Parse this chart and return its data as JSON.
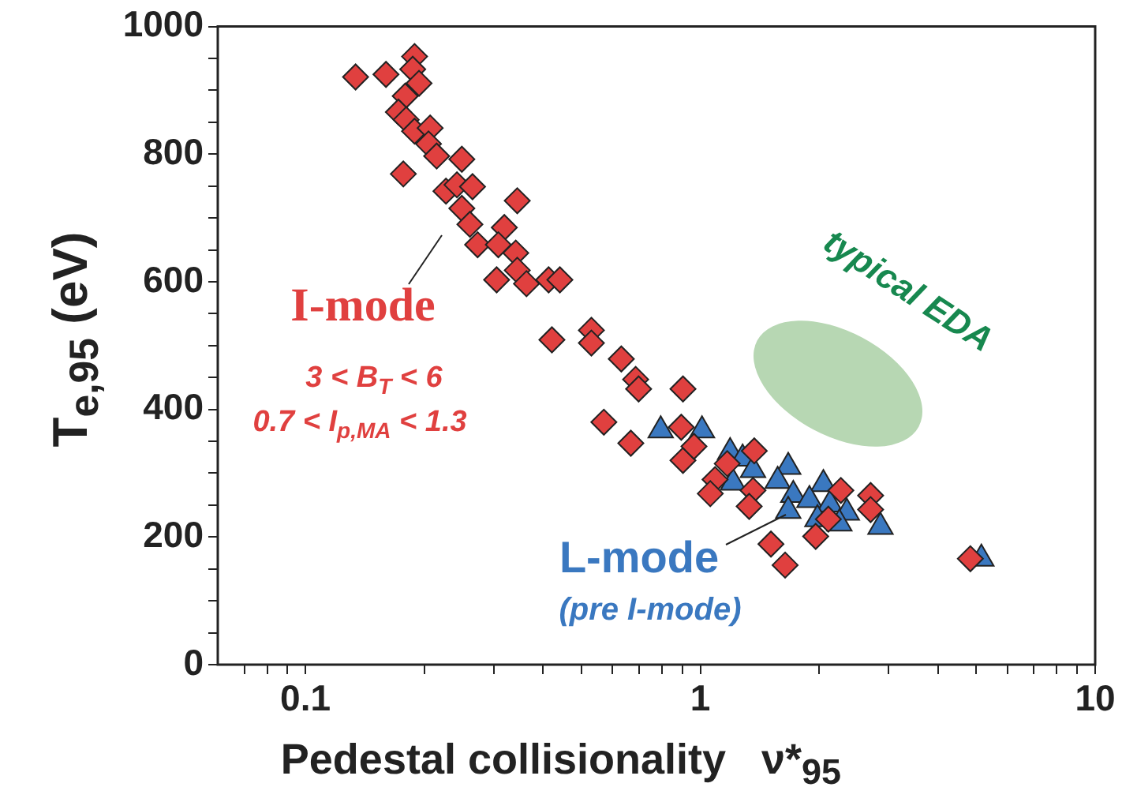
{
  "chart_data": {
    "type": "scatter",
    "xlabel": "Pedestal collisionality   ν*$_{95}$",
    "ylabel": "T$_{e,95}$ (eV)",
    "log": "x",
    "xlim": [
      0.06,
      10
    ],
    "xticks": [
      {
        "value": 0.07,
        "label": null
      },
      {
        "value": 0.08,
        "label": null
      },
      {
        "value": 0.09,
        "label": null
      },
      0.1,
      {
        "value": 0.2,
        "label": null
      },
      {
        "value": 0.3,
        "label": null
      },
      {
        "value": 0.4,
        "label": null
      },
      {
        "value": 0.5,
        "label": null
      },
      {
        "value": 0.6,
        "label": null
      },
      {
        "value": 0.7,
        "label": null
      },
      {
        "value": 0.8,
        "label": null
      },
      {
        "value": 0.9,
        "label": null
      },
      1,
      {
        "value": 2,
        "label": null
      },
      {
        "value": 3,
        "label": null
      },
      {
        "value": 4,
        "label": null
      },
      {
        "value": 5,
        "label": null
      },
      {
        "value": 6,
        "label": null
      },
      {
        "value": 7,
        "label": null
      },
      {
        "value": 8,
        "label": null
      },
      {
        "value": 9,
        "label": null
      },
      10
    ],
    "ylim": [
      0,
      1000
    ],
    "yticks": [
      0,
      {
        "value": 50,
        "label": null
      },
      {
        "value": 100,
        "label": null
      },
      {
        "value": 150,
        "label": null
      },
      200,
      {
        "value": 250,
        "label": null
      },
      {
        "value": 300,
        "label": null
      },
      {
        "value": 350,
        "label": null
      },
      400,
      {
        "value": 450,
        "label": null
      },
      {
        "value": 500,
        "label": null
      },
      {
        "value": 550,
        "label": null
      },
      600,
      {
        "value": 650,
        "label": null
      },
      {
        "value": 700,
        "label": null
      },
      {
        "value": 750,
        "label": null
      },
      800,
      {
        "value": 850,
        "label": null
      },
      {
        "value": 900,
        "label": null
      },
      {
        "value": 950,
        "label": null
      },
      1000
    ],
    "series": [
      {
        "name": "I-mode",
        "color": "#e0403f",
        "marker": "diamond",
        "x": [
          0.134,
          0.16,
          0.189,
          0.187,
          0.194,
          0.179,
          0.172,
          0.18,
          0.189,
          0.207,
          0.205,
          0.215,
          0.177,
          0.249,
          0.227,
          0.242,
          0.265,
          null,
          0.249,
          0.261,
          0.344,
          0.273,
          0.319,
          0.308,
          0.341,
          0.344,
          0.305,
          0.363,
          0.413,
          0.441,
          0.421,
          0.53,
          0.53,
          0.631,
          0.686,
          0.698,
          0.904,
          0.57,
          0.667,
          0.895,
          0.904,
          0.964,
          1.37,
          1.17,
          1.09,
          1.06,
          1.36,
          1.33,
          2.27,
          2.7,
          2.7,
          1.96,
          2.11,
          1.51,
          1.64,
          4.83
        ],
        "values": [
          921,
          925,
          953,
          933,
          911,
          891,
          866,
          854,
          836,
          841,
          816,
          797,
          769,
          792,
          742,
          752,
          749,
          null,
          715,
          690,
          727,
          658,
          685,
          658,
          645,
          618,
          603,
          597,
          603,
          603,
          509,
          524,
          504,
          479,
          447,
          432,
          432,
          380,
          347,
          372,
          320,
          342,
          335,
          315,
          290,
          268,
          273,
          248,
          273,
          265,
          243,
          201,
          228,
          189,
          156,
          166
        ]
      },
      {
        "name": "L-mode",
        "color": "#3a78c0",
        "marker": "triangle",
        "x": [
          0.794,
          1.01,
          1.19,
          1.28,
          1.36,
          1.21,
          1.67,
          1.57,
          2.05,
          1.72,
          1.89,
          2.13,
          2.35,
          1.67,
          1.98,
          2.25,
          2.86,
          5.15
        ],
        "values": [
          367,
          367,
          333,
          323,
          305,
          285,
          310,
          288,
          283,
          266,
          258,
          251,
          238,
          241,
          228,
          221,
          216,
          166
        ]
      }
    ],
    "legend": "left",
    "annotations": [
      "3 < B$_{T}$ < 6",
      "0.7 < I$_{p,MA}$ < 1.3",
      "(pre I-mode)",
      "typical EDA"
    ]
  }
}
